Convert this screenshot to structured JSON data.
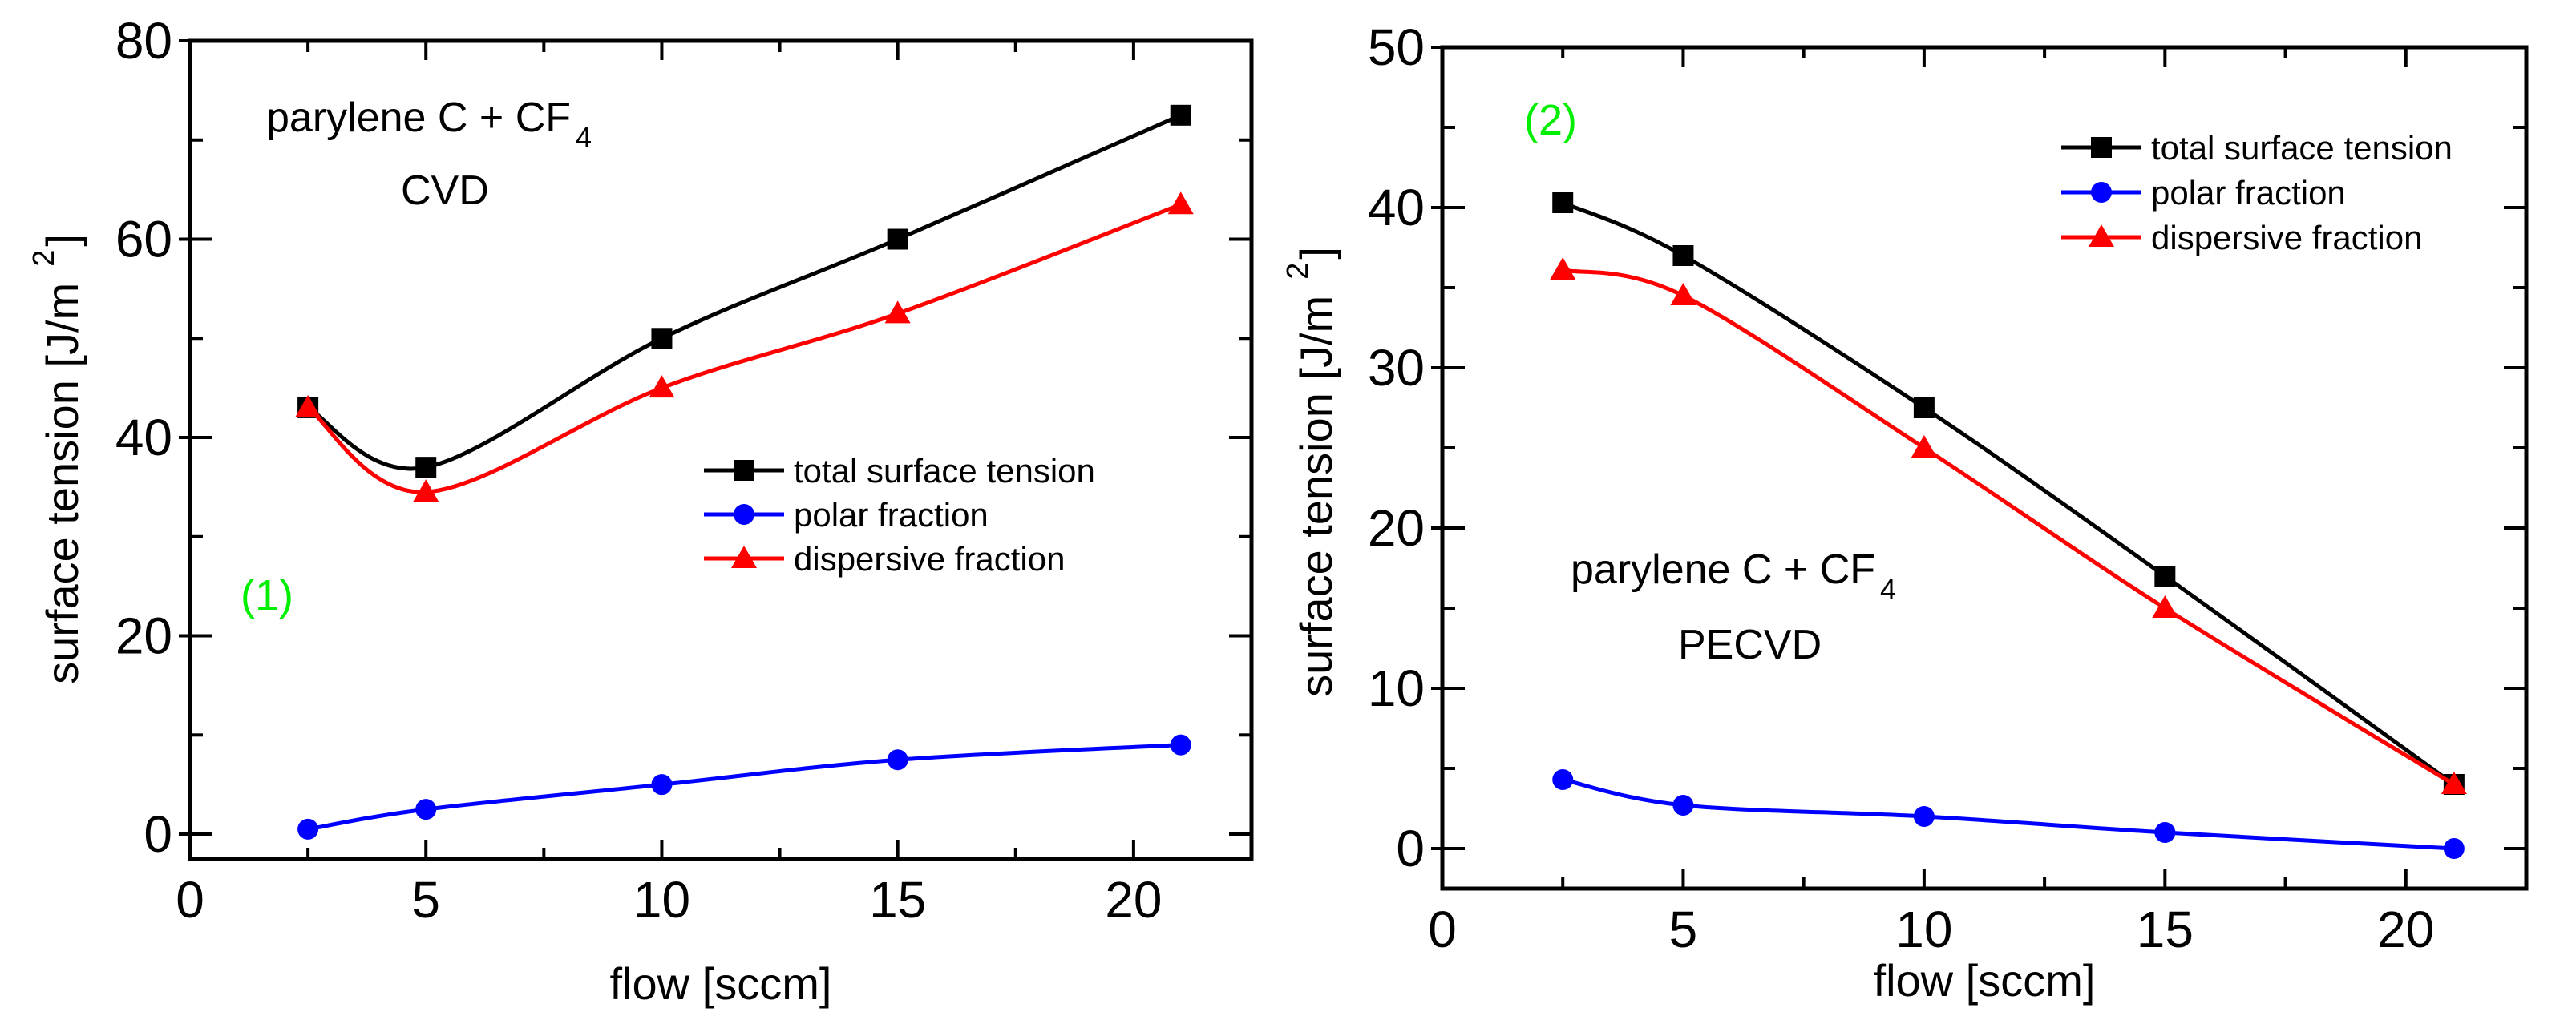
{
  "chart_data": [
    {
      "type": "line",
      "panel_label": "(1)",
      "annotation": {
        "line1": "parylene C + CF",
        "sub": "4",
        "line2": "CVD"
      },
      "xlabel": "flow [sccm]",
      "ylabel": "surface tension [J/m",
      "ylabel_sup": "2",
      "ylabel_close": "]",
      "xlim": [
        0,
        22.5
      ],
      "ylim": [
        -2.5,
        80
      ],
      "xticks": [
        0,
        5,
        10,
        15,
        20
      ],
      "yticks": [
        0,
        20,
        40,
        60,
        80
      ],
      "xminor": 2.5,
      "yminor": 10,
      "legend_position": "center-right",
      "x": [
        2.5,
        5,
        10,
        15,
        21
      ],
      "series": [
        {
          "name": "total surface tension",
          "color": "#000000",
          "marker": "square",
          "values": [
            43,
            37,
            50,
            60,
            72.5
          ]
        },
        {
          "name": "polar fraction",
          "color": "#0000ff",
          "marker": "circle",
          "values": [
            0.5,
            2.5,
            5,
            7.5,
            9
          ]
        },
        {
          "name": "dispersive fraction",
          "color": "#ff0000",
          "marker": "triangle",
          "values": [
            43,
            34.5,
            45,
            52.5,
            63.5
          ]
        }
      ]
    },
    {
      "type": "line",
      "panel_label": "(2)",
      "annotation": {
        "line1": "parylene C + CF",
        "sub": "4",
        "line2": "PECVD"
      },
      "xlabel": "flow [sccm]",
      "ylabel": "surface tension [J/m",
      "ylabel_sup": "2",
      "ylabel_close": "]",
      "xlim": [
        0,
        22.5
      ],
      "ylim": [
        -2.5,
        50
      ],
      "xticks": [
        0,
        5,
        10,
        15,
        20
      ],
      "yticks": [
        0,
        10,
        20,
        30,
        40,
        50
      ],
      "xminor": 2.5,
      "yminor": 5,
      "legend_position": "top-right",
      "x": [
        2.5,
        5,
        10,
        15,
        21
      ],
      "series": [
        {
          "name": "total surface tension",
          "color": "#000000",
          "marker": "square",
          "values": [
            40.3,
            37,
            27.5,
            17,
            4
          ]
        },
        {
          "name": "polar fraction",
          "color": "#0000ff",
          "marker": "circle",
          "values": [
            4.3,
            2.7,
            2,
            1,
            0
          ]
        },
        {
          "name": "dispersive fraction",
          "color": "#ff0000",
          "marker": "triangle",
          "values": [
            36.1,
            34.5,
            25,
            15,
            4
          ]
        }
      ]
    }
  ],
  "colors": {
    "panel_label": "#00ee00"
  }
}
